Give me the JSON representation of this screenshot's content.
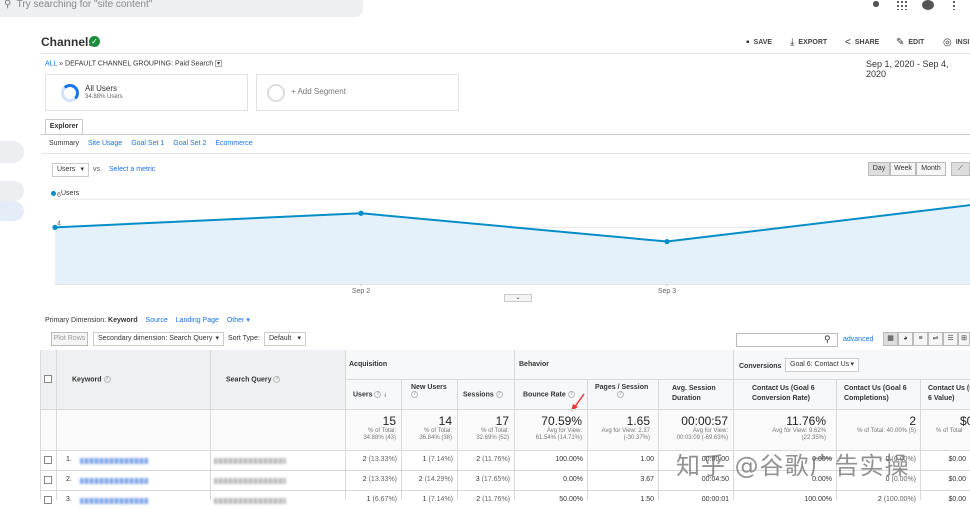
{
  "search": {
    "placeholder": "Try searching for \"site content\""
  },
  "page": {
    "title": "Channels"
  },
  "toolbar": {
    "save": "SAVE",
    "export": "EXPORT",
    "share": "SHARE",
    "edit": "EDIT",
    "insights": "INSI"
  },
  "breadcrumb": {
    "all": "ALL",
    "sep": "»",
    "grouping": "DEFAULT CHANNEL GROUPING: Paid Search"
  },
  "date_range": "Sep 1, 2020 - Sep 4, 2020",
  "segments": {
    "all_users_label": "All Users",
    "all_users_pct": "34.88% Users",
    "add_segment": "+ Add Segment"
  },
  "explorer_tab": "Explorer",
  "subtabs": [
    "Summary",
    "Site Usage",
    "Goal Set 1",
    "Goal Set 2",
    "Ecommerce"
  ],
  "metric_select": {
    "value": "Users",
    "vs": "vs.",
    "select_metric": "Select a metric"
  },
  "period_buttons": [
    "Day",
    "Week",
    "Month"
  ],
  "legend": "Users",
  "chart_data": {
    "type": "line",
    "series": [
      {
        "name": "Users",
        "values": [
          4,
          5,
          3,
          5.6
        ]
      }
    ],
    "x": [
      "Sep 1",
      "Sep 2",
      "Sep 3",
      "Sep 4"
    ],
    "xticks": [
      "Sep 2",
      "Sep 3"
    ],
    "yticks": [
      "2",
      "4",
      "6"
    ],
    "ylim": [
      0,
      6.5
    ],
    "color": "#058dc7"
  },
  "primary_dimension": {
    "label": "Primary Dimension:",
    "keyword": "Keyword",
    "source": "Source",
    "landing": "Landing Page",
    "other": "Other"
  },
  "table_controls": {
    "plot_rows": "Plot Rows",
    "secondary": "Secondary dimension: Search Query",
    "sort_label": "Sort Type:",
    "sort_value": "Default",
    "advanced": "advanced"
  },
  "table": {
    "col_keyword": "Keyword",
    "col_query": "Search Query",
    "group_acquisition": "Acquisition",
    "group_behavior": "Behavior",
    "group_conversions": "Conversions",
    "goal_select": "Goal 6: Contact Us",
    "cols": [
      "Users",
      "New Users",
      "Sessions",
      "Bounce Rate",
      "Pages / Session",
      "Avg. Session Duration",
      "Contact Us (Goal 6 Conversion Rate)",
      "Contact Us (Goal 6 Completions)",
      "Contact Us (Goal 6 Value)"
    ],
    "totals": [
      {
        "big": "15",
        "sub1": "% of Total:",
        "sub2": "34.88% (43)"
      },
      {
        "big": "14",
        "sub1": "% of Total:",
        "sub2": "36.84% (38)"
      },
      {
        "big": "17",
        "sub1": "% of Total:",
        "sub2": "32.69% (52)"
      },
      {
        "big": "70.59%",
        "sub1": "Avg for View:",
        "sub2": "61.54% (14.71%)"
      },
      {
        "big": "1.65",
        "sub1": "Avg for View: 2.37",
        "sub2": "(-30.37%)"
      },
      {
        "big": "00:00:57",
        "sub1": "Avg for View:",
        "sub2": "00:03:09 (-69.63%)"
      },
      {
        "big": "11.76%",
        "sub1": "Avg for View: 9.62%",
        "sub2": "(22.35%)"
      },
      {
        "big": "2",
        "sub1": "% of Total: 40.00% (5)",
        "sub2": ""
      },
      {
        "big": "$0",
        "sub1": "% of Total",
        "sub2": ""
      }
    ],
    "rows": [
      {
        "num": "1.",
        "keyword": "industrial keyboard",
        "users": "2",
        "users_pct": "(13.33%)",
        "new": "1",
        "new_pct": "(7.14%)",
        "sessions": "2",
        "sessions_pct": "(11.76%)",
        "bounce": "100.00%",
        "pages": "1.00",
        "duration": "00:00:00",
        "conv": "0.00%",
        "comp": "0",
        "comp_pct": "(0.00%)",
        "value": "$0.00"
      },
      {
        "num": "2.",
        "keyword": "industrial keyboard",
        "users": "2",
        "users_pct": "(13.33%)",
        "new": "2",
        "new_pct": "(14.29%)",
        "sessions": "3",
        "sessions_pct": "(17.65%)",
        "bounce": "0.00%",
        "pages": "3.67",
        "duration": "00:04:50",
        "conv": "0.00%",
        "comp": "0",
        "comp_pct": "(0.00%)",
        "value": "$0.00"
      },
      {
        "num": "3.",
        "keyword": "industrial keyboard",
        "query": "industrial keyboard singapore",
        "users": "1",
        "users_pct": "(6.67%)",
        "new": "1",
        "new_pct": "(7.14%)",
        "sessions": "2",
        "sessions_pct": "(11.76%)",
        "bounce": "50.00%",
        "pages": "1.50",
        "duration": "00:00:01",
        "conv": "100.00%",
        "comp": "2",
        "comp_pct": "(100.00%)",
        "value": "$0.00"
      }
    ]
  },
  "watermark": "知乎 @谷歌广告实操"
}
